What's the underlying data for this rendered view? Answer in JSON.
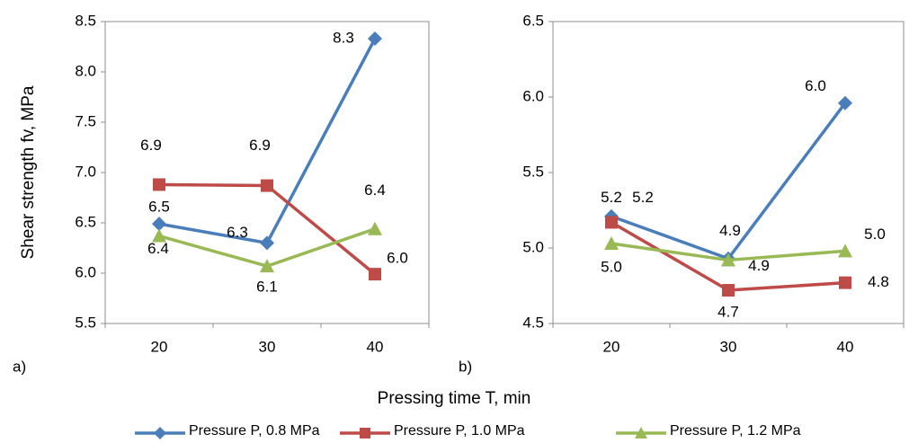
{
  "xlabel": "Pressing time T, min",
  "chart_data": [
    {
      "type": "line",
      "panel_label": "a)",
      "ylabel": "Shear strength fv, MPa",
      "categories": [
        "20",
        "30",
        "40"
      ],
      "ylim": [
        5.5,
        8.5
      ],
      "yticks": [
        5.5,
        {
          "value": 6,
          "label": "6.0"
        },
        6.5,
        {
          "value": 7,
          "label": "7.0"
        },
        7.5,
        {
          "value": 8,
          "label": "8.0"
        },
        8.5
      ],
      "series": [
        {
          "name": "Pressure P, 0.8 MPa",
          "color": "#4a7ebb",
          "marker": "diamond",
          "values": [
            6.49,
            6.3,
            8.33
          ],
          "value_labels": [
            "6.5",
            "6.3",
            "8.3"
          ]
        },
        {
          "name": "Pressure P, 1.0 MPa",
          "color": "#be4b48",
          "marker": "square",
          "values": [
            6.88,
            6.87,
            5.99
          ],
          "value_labels": [
            "6.9",
            "6.9",
            "6.0"
          ]
        },
        {
          "name": "Pressure P, 1.2 MPa",
          "color": "#98b954",
          "marker": "triangle",
          "values": [
            6.37,
            6.07,
            6.44
          ],
          "value_labels": [
            "6.4",
            "6.1",
            "6.4"
          ]
        }
      ]
    },
    {
      "type": "line",
      "panel_label": "b)",
      "categories": [
        "20",
        "30",
        "40"
      ],
      "ylim": [
        4.5,
        6.5
      ],
      "yticks": [
        4.5,
        {
          "value": 5,
          "label": "5.0"
        },
        5.5,
        {
          "value": 6,
          "label": "6.0"
        },
        6.5
      ],
      "series": [
        {
          "color": "#4a7ebb",
          "marker": "diamond",
          "values": [
            5.21,
            4.93,
            5.96
          ],
          "value_labels": [
            "5.2",
            "4.9",
            "6.0"
          ]
        },
        {
          "color": "#be4b48",
          "marker": "square",
          "values": [
            5.17,
            4.72,
            4.77
          ],
          "value_labels": [
            "5.2",
            "4.7",
            "4.8"
          ]
        },
        {
          "color": "#98b954",
          "marker": "triangle",
          "values": [
            5.03,
            4.92,
            4.98
          ],
          "value_labels": [
            "5.0",
            "4.9",
            "5.0"
          ]
        }
      ]
    }
  ]
}
